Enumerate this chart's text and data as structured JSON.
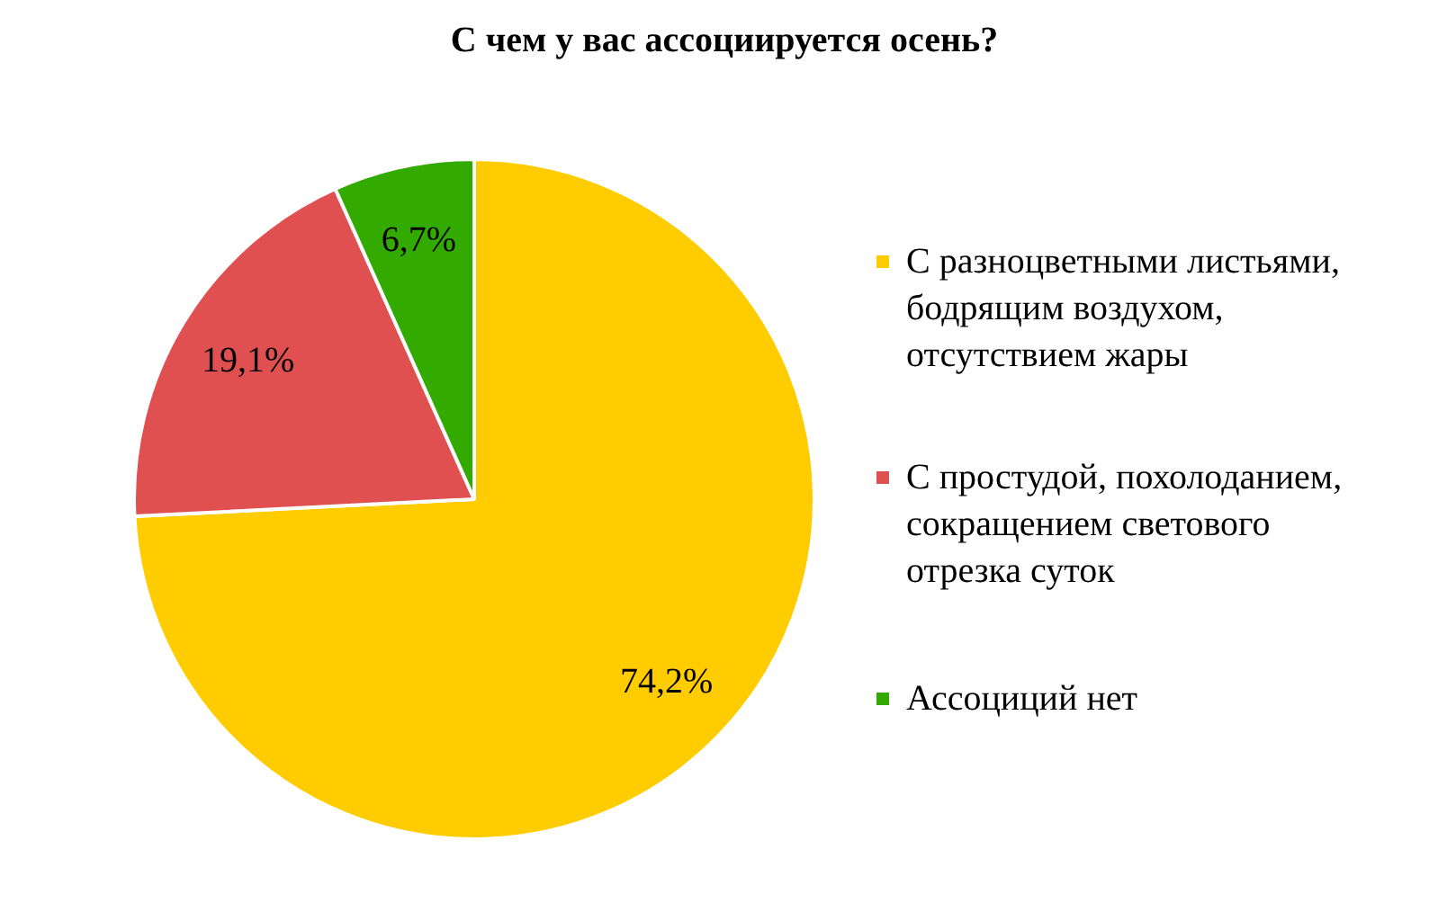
{
  "chart_data": {
    "type": "pie",
    "title": "С чем у вас ассоциируется  осень?",
    "categories": [
      "С разноцветными листьями, бодрящим воздухом, отсутствием жары",
      "С простудой, похолоданием, сокращением светового отрезка суток",
      "Ассоциций нет"
    ],
    "values": [
      74.2,
      19.1,
      6.7
    ],
    "colors": [
      "#ffcc00",
      "#e05050",
      "#33aa00"
    ],
    "value_labels": [
      "74,2%",
      "19,1%",
      "6,7%"
    ],
    "legend": "right"
  }
}
